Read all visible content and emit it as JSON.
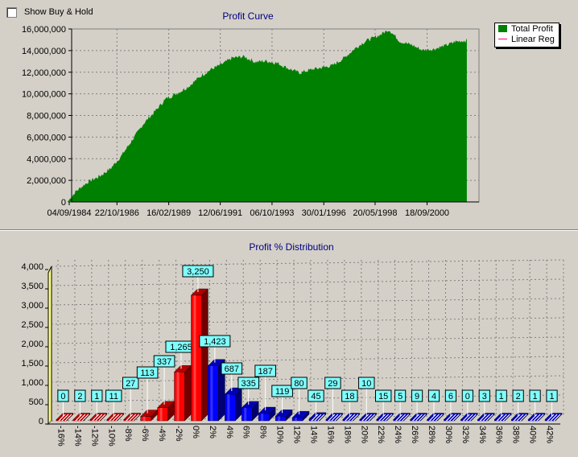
{
  "show_buy_hold": {
    "label": "Show Buy & Hold",
    "checked": false
  },
  "colors": {
    "background": "#d4d0c8",
    "title": "#000080",
    "profit_fill": "#008000",
    "linear_reg": "#ff0080",
    "bar_negative": "#ff0000",
    "bar_positive": "#0000ff",
    "label_box": "#80ffff",
    "wall": "#ffff80"
  },
  "chart_data": [
    {
      "type": "area",
      "title": "Profit Curve",
      "xlabel": "",
      "ylabel": "",
      "x_ticks": [
        "04/09/1984",
        "22/10/1986",
        "16/02/1989",
        "12/06/1991",
        "06/10/1993",
        "30/01/1996",
        "20/05/1998",
        "18/09/2000"
      ],
      "y_ticks": [
        "0",
        "2,000,000",
        "4,000,000",
        "6,000,000",
        "8,000,000",
        "10,000,000",
        "12,000,000",
        "14,000,000",
        "16,000,000"
      ],
      "ylim": [
        0,
        16000000
      ],
      "grid": true,
      "legend_placement": "top-right",
      "series": [
        {
          "name": "Total Profit",
          "x": [
            "1984.6",
            "1985.0",
            "1985.5",
            "1986.0",
            "1986.5",
            "1987.0",
            "1987.5",
            "1988.0",
            "1988.5",
            "1989.0",
            "1989.5",
            "1990.0",
            "1990.5",
            "1991.0",
            "1991.5",
            "1992.0",
            "1992.5",
            "1993.0",
            "1993.5",
            "1994.0",
            "1994.5",
            "1995.0",
            "1995.5",
            "1996.0",
            "1996.5",
            "1997.0",
            "1997.5",
            "1998.0",
            "1998.5",
            "1999.0",
            "1999.5",
            "2000.0",
            "2000.5",
            "2001.0",
            "2001.5",
            "2002.0",
            "2002.5"
          ],
          "values": [
            0,
            1000000,
            1800000,
            2300000,
            3000000,
            4200000,
            5700000,
            7200000,
            8300000,
            9500000,
            10000000,
            10600000,
            11500000,
            12200000,
            12700000,
            13300000,
            13400000,
            12900000,
            13000000,
            12800000,
            12300000,
            11900000,
            12200000,
            12400000,
            12600000,
            13300000,
            14200000,
            14900000,
            15300000,
            15900000,
            14800000,
            14500000,
            14000000,
            14100000,
            14400000,
            14800000,
            14900000
          ]
        },
        {
          "name": "Linear Reg",
          "values": []
        }
      ]
    },
    {
      "type": "bar",
      "title": "Profit % Distribution",
      "xlabel": "",
      "ylabel": "",
      "categories": [
        "-16%",
        "-14%",
        "-12%",
        "-10%",
        "-8%",
        "-6%",
        "-4%",
        "-2%",
        "0%",
        "2%",
        "4%",
        "6%",
        "8%",
        "10%",
        "12%",
        "14%",
        "16%",
        "18%",
        "20%",
        "22%",
        "24%",
        "26%",
        "28%",
        "30%",
        "32%",
        "34%",
        "36%",
        "38%",
        "40%",
        "42%"
      ],
      "values": [
        0,
        2,
        1,
        11,
        27,
        113,
        337,
        1265,
        3250,
        1423,
        687,
        335,
        187,
        119,
        80,
        45,
        29,
        18,
        10,
        15,
        5,
        9,
        4,
        6,
        0,
        3,
        1,
        2,
        1,
        1
      ],
      "data_labels": [
        "0",
        "2",
        "1",
        "11",
        "27",
        "113",
        "337",
        "1,265",
        "3,250",
        "1,423",
        "687",
        "335",
        "187",
        "119",
        "80",
        "45",
        "29",
        "18",
        "10",
        "15",
        "5",
        "9",
        "4",
        "6",
        "0",
        "3",
        "1",
        "2",
        "1",
        "1"
      ],
      "y_ticks": [
        "0",
        "500",
        "1,000",
        "1,500",
        "2,000",
        "2,500",
        "3,000",
        "3,500",
        "4,000"
      ],
      "ylim": [
        0,
        4000
      ],
      "grid": true
    }
  ]
}
